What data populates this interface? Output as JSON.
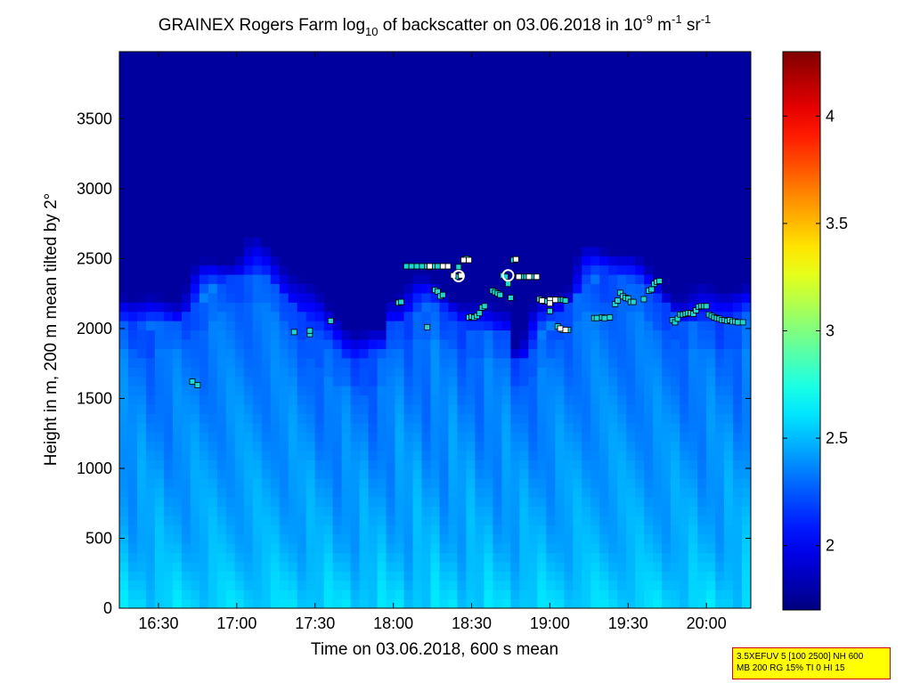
{
  "chart_data": {
    "type": "heatmap",
    "title": {
      "main": "GRAINEX Rogers Farm log",
      "sub_index": "10",
      "mid": " of backscatter on 03.06.2018 in 10",
      "sup_exp1": "-9",
      "mid2": " m",
      "sup_exp2": "-1",
      "mid3": " sr",
      "sup_exp3": "-1"
    },
    "xlabel": "Time on 03.06.2018, 600 s mean",
    "ylabel": "Height in m, 200 m mean tilted by 2°",
    "x_ticks": [
      "16:30",
      "17:00",
      "17:30",
      "18:00",
      "18:30",
      "19:00",
      "19:30",
      "20:00"
    ],
    "x_tick_minutes": [
      990,
      1020,
      1050,
      1080,
      1110,
      1140,
      1170,
      1200
    ],
    "xlim_minutes": [
      975,
      1217
    ],
    "y_ticks": [
      "0",
      "500",
      "1000",
      "1500",
      "2000",
      "2500",
      "3000",
      "3500"
    ],
    "y_tick_values": [
      0,
      500,
      1000,
      1500,
      2000,
      2500,
      3000,
      3500
    ],
    "ylim": [
      0,
      3980
    ],
    "colorbar": {
      "range": [
        1.7,
        4.3
      ],
      "ticks": [
        "2",
        "2.5",
        "3",
        "3.5",
        "4"
      ],
      "tick_values": [
        2,
        2.5,
        3,
        3.5,
        4
      ],
      "colormap": "jet"
    },
    "cloud_base_points": [
      [
        1003,
        1620
      ],
      [
        1005,
        1595
      ],
      [
        1042,
        1975
      ],
      [
        1048,
        1960
      ],
      [
        1048,
        1985
      ],
      [
        1056,
        2055
      ],
      [
        1082,
        2185
      ],
      [
        1083,
        2190
      ],
      [
        1085,
        2445
      ],
      [
        1087,
        2445
      ],
      [
        1089,
        2445
      ],
      [
        1091,
        2445
      ],
      [
        1093,
        2445
      ],
      [
        1095,
        2445
      ],
      [
        1097,
        2445
      ],
      [
        1099,
        2445
      ],
      [
        1101,
        2445
      ],
      [
        1093,
        2010
      ],
      [
        1094,
        2440
      ],
      [
        1096,
        2275
      ],
      [
        1097,
        2265
      ],
      [
        1098,
        2230
      ],
      [
        1099,
        2240
      ],
      [
        1103,
        2380
      ],
      [
        1104,
        2370
      ],
      [
        1105,
        2440
      ],
      [
        1106,
        2380
      ],
      [
        1107,
        2490
      ],
      [
        1108,
        2500
      ],
      [
        1109,
        2080
      ],
      [
        1110,
        2085
      ],
      [
        1111,
        2080
      ],
      [
        1112,
        2090
      ],
      [
        1113,
        2110
      ],
      [
        1114,
        2150
      ],
      [
        1115,
        2160
      ],
      [
        1118,
        2270
      ],
      [
        1119,
        2260
      ],
      [
        1120,
        2250
      ],
      [
        1121,
        2240
      ],
      [
        1122,
        2380
      ],
      [
        1123,
        2370
      ],
      [
        1124,
        2320
      ],
      [
        1125,
        2220
      ],
      [
        1126,
        2490
      ],
      [
        1127,
        2495
      ],
      [
        1128,
        2370
      ],
      [
        1129,
        2370
      ],
      [
        1130,
        2370
      ],
      [
        1131,
        2370
      ],
      [
        1132,
        2370
      ],
      [
        1133,
        2370
      ],
      [
        1134,
        2370
      ],
      [
        1135,
        2370
      ],
      [
        1136,
        2210
      ],
      [
        1137,
        2200
      ],
      [
        1138,
        2195
      ],
      [
        1139,
        2195
      ],
      [
        1140,
        2200
      ],
      [
        1141,
        2205
      ],
      [
        1142,
        2205
      ],
      [
        1143,
        2205
      ],
      [
        1145,
        2205
      ],
      [
        1146,
        2200
      ],
      [
        1140,
        2180
      ],
      [
        1140,
        2125
      ],
      [
        1143,
        2015
      ],
      [
        1144,
        2000
      ],
      [
        1145,
        1990
      ],
      [
        1147,
        1990
      ],
      [
        1157,
        2075
      ],
      [
        1158,
        2075
      ],
      [
        1160,
        2080
      ],
      [
        1161,
        2075
      ],
      [
        1163,
        2080
      ],
      [
        1165,
        2175
      ],
      [
        1166,
        2200
      ],
      [
        1167,
        2255
      ],
      [
        1168,
        2230
      ],
      [
        1169,
        2220
      ],
      [
        1170,
        2215
      ],
      [
        1171,
        2190
      ],
      [
        1172,
        2190
      ],
      [
        1176,
        2210
      ],
      [
        1178,
        2270
      ],
      [
        1179,
        2280
      ],
      [
        1180,
        2320
      ],
      [
        1181,
        2335
      ],
      [
        1182,
        2340
      ],
      [
        1187,
        2060
      ],
      [
        1188,
        2045
      ],
      [
        1189,
        2070
      ],
      [
        1190,
        2100
      ],
      [
        1191,
        2100
      ],
      [
        1192,
        2105
      ],
      [
        1193,
        2110
      ],
      [
        1194,
        2110
      ],
      [
        1195,
        2105
      ],
      [
        1196,
        2130
      ],
      [
        1197,
        2155
      ],
      [
        1198,
        2160
      ],
      [
        1199,
        2160
      ],
      [
        1200,
        2160
      ],
      [
        1201,
        2100
      ],
      [
        1202,
        2090
      ],
      [
        1203,
        2080
      ],
      [
        1204,
        2075
      ],
      [
        1205,
        2070
      ],
      [
        1206,
        2060
      ],
      [
        1207,
        2060
      ],
      [
        1208,
        2055
      ],
      [
        1209,
        2060
      ],
      [
        1210,
        2050
      ],
      [
        1211,
        2050
      ],
      [
        1212,
        2045
      ],
      [
        1214,
        2045
      ]
    ],
    "white_points": [
      [
        1094,
        2445
      ],
      [
        1099,
        2445
      ],
      [
        1101,
        2445
      ],
      [
        1103,
        2380
      ],
      [
        1106,
        2380
      ],
      [
        1107,
        2490
      ],
      [
        1109,
        2490
      ],
      [
        1127,
        2495
      ],
      [
        1128,
        2370
      ],
      [
        1132,
        2370
      ],
      [
        1135,
        2370
      ],
      [
        1137,
        2200
      ],
      [
        1140,
        2205
      ],
      [
        1142,
        2205
      ],
      [
        1140,
        2180
      ],
      [
        1144,
        2000
      ],
      [
        1146,
        1990
      ]
    ],
    "circle_points": [
      [
        1105,
        2375
      ],
      [
        1124,
        2380
      ]
    ]
  },
  "infobox": {
    "line1": "3.5XEFUV 5 [100 2500] NH 600",
    "line2": "MB 200 RG 15% TI 0 HI 15"
  },
  "colors": {
    "cloud_marker": "#22d6d0",
    "marker_edge": "#000000",
    "circle": "#ffffff",
    "infobox_bg": "#ffff00",
    "infobox_border": "#cc0000"
  }
}
